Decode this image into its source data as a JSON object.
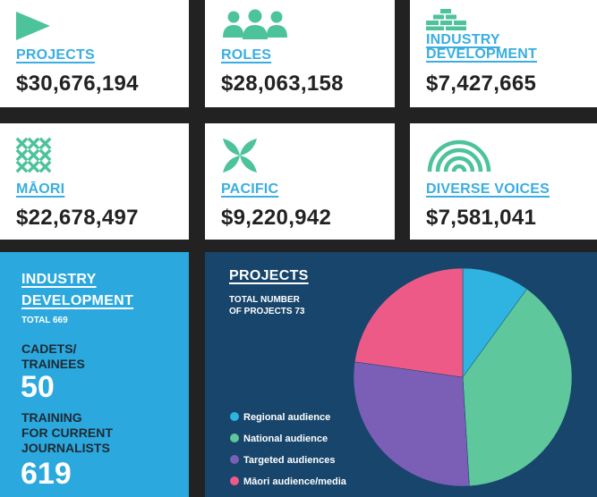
{
  "cards": [
    {
      "label_lines": [
        "PROJECTS"
      ],
      "amount": "$30,676,194",
      "icon": "play-icon"
    },
    {
      "label_lines": [
        "ROLES"
      ],
      "amount": "$28,063,158",
      "icon": "people-icon"
    },
    {
      "label_lines": [
        "INDUSTRY",
        "DEVELOPMENT"
      ],
      "amount": "$7,427,665",
      "icon": "bricks-icon"
    },
    {
      "label_lines": [
        "MĀORI"
      ],
      "amount": "$22,678,497",
      "icon": "cross-pattern-icon"
    },
    {
      "label_lines": [
        "PACIFIC"
      ],
      "amount": "$9,220,942",
      "icon": "leaf-star-icon"
    },
    {
      "label_lines": [
        "DIVERSE VOICES"
      ],
      "amount": "$7,581,041",
      "icon": "rainbow-icon"
    }
  ],
  "industry": {
    "title_line1": "INDUSTRY",
    "title_line2": "DEVELOPMENT",
    "total": "TOTAL 669",
    "cadets_line1": "CADETS/",
    "cadets_line2": "TRAINEES",
    "cadets_value": "50",
    "training_line1": "TRAINING",
    "training_line2": "FOR CURRENT",
    "training_line3": "JOURNALISTS",
    "training_value": "619"
  },
  "colors": {
    "accent": "#3aaee0",
    "green": "#4cc39a",
    "panel_blue": "#2ba8de",
    "panel_dark": "#17456b"
  },
  "chart_data": {
    "type": "pie",
    "title": "PROJECTS",
    "subtitle_line1": "TOTAL NUMBER",
    "subtitle_line2": "OF PROJECTS 73",
    "categories": [
      "Regional audience",
      "National audience",
      "Targeted audiences",
      "Māori audience/media"
    ],
    "values": [
      7.3,
      28.5,
      20.6,
      16.6
    ],
    "colors": [
      "#2fb3e0",
      "#5ec79b",
      "#7b5fb6",
      "#ee5a88"
    ],
    "legend_position": "bottom-left"
  }
}
